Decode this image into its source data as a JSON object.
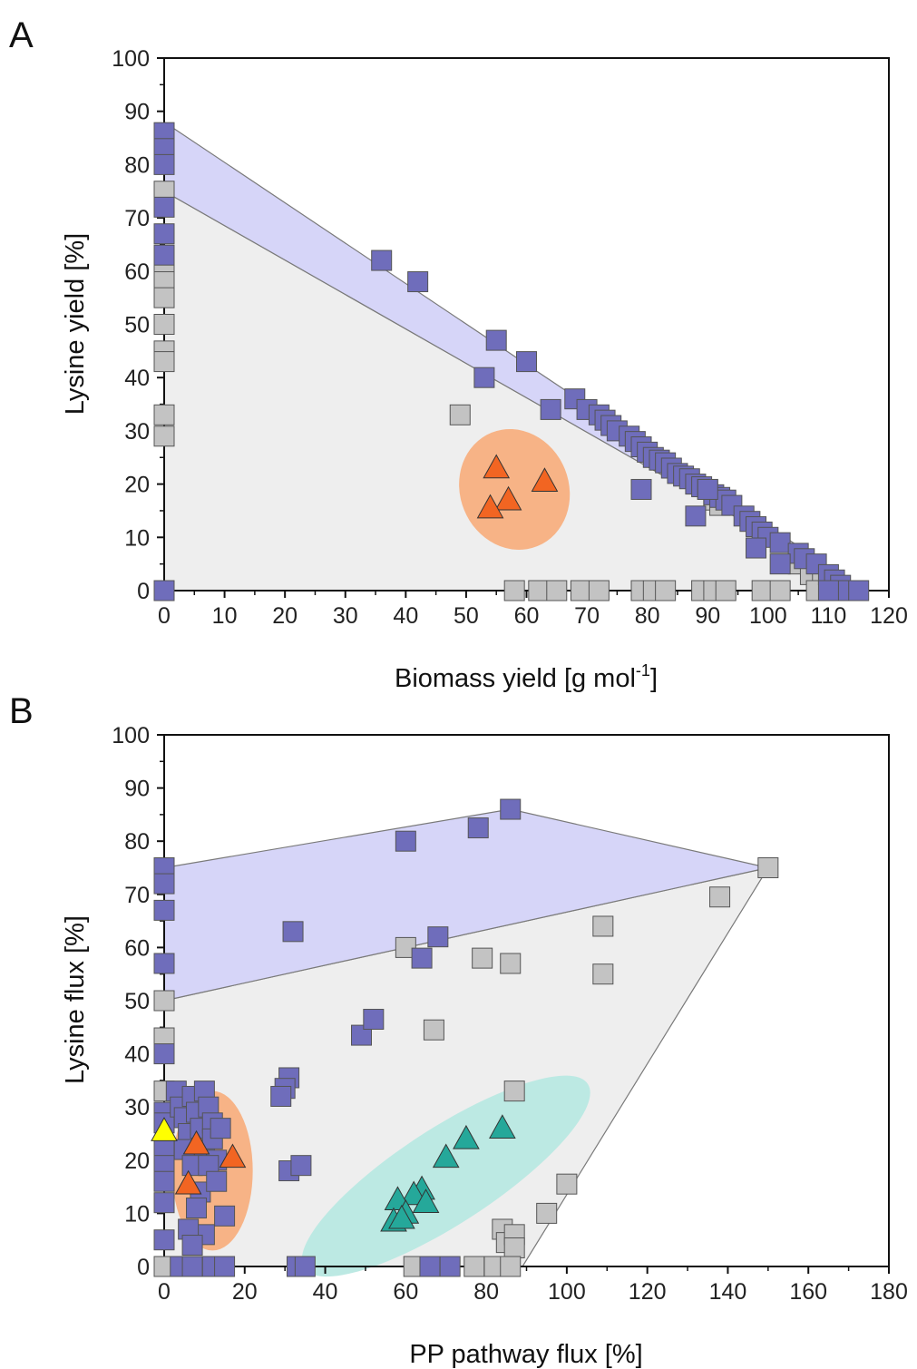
{
  "chart_data": [
    {
      "panel": "A",
      "type": "scatter",
      "xlabel": "Biomass yield [g  mol",
      "xlabel_sup": "-1",
      "xlabel_end": "]",
      "ylabel": "Lysine yield [%]",
      "xlim": [
        0,
        120
      ],
      "ylim": [
        0,
        100
      ],
      "xticks": [
        0,
        10,
        20,
        30,
        40,
        50,
        60,
        70,
        80,
        90,
        100,
        110,
        120
      ],
      "yticks": [
        0,
        10,
        20,
        30,
        40,
        50,
        60,
        70,
        80,
        90,
        100
      ],
      "regions": [
        {
          "color": "#eeeeee",
          "points": [
            [
              0,
              75
            ],
            [
              0,
              0
            ],
            [
              116,
              0
            ]
          ]
        },
        {
          "color": "#d6d5f8",
          "points": [
            [
              0,
              88
            ],
            [
              0,
              75
            ],
            [
              116,
              0
            ]
          ]
        }
      ],
      "ellipses": [
        {
          "color": "#f7b386",
          "cx": 58,
          "cy": 19,
          "rx": 9,
          "ry": 11.5,
          "rotate": -22
        }
      ],
      "series": [
        {
          "marker": "square",
          "color": "#c3c3c3",
          "points": [
            [
              0,
              75
            ],
            [
              0,
              60
            ],
            [
              0,
              58
            ],
            [
              0,
              55
            ],
            [
              0,
              50
            ],
            [
              0,
              45
            ],
            [
              0,
              43
            ],
            [
              0,
              33
            ],
            [
              0,
              29
            ],
            [
              49,
              33
            ],
            [
              91,
              17
            ],
            [
              92,
              16
            ],
            [
              105,
              5
            ],
            [
              107,
              3
            ],
            [
              109,
              2
            ],
            [
              58,
              0
            ],
            [
              62,
              0
            ],
            [
              65,
              0
            ],
            [
              69,
              0
            ],
            [
              72,
              0
            ],
            [
              79,
              0
            ],
            [
              81,
              0
            ],
            [
              83,
              0
            ],
            [
              89,
              0
            ],
            [
              91,
              0
            ],
            [
              93,
              0
            ],
            [
              99,
              0
            ],
            [
              102,
              0
            ],
            [
              108,
              0
            ]
          ]
        },
        {
          "marker": "square",
          "color": "#6f6dbb",
          "points": [
            [
              0,
              86
            ],
            [
              0,
              83
            ],
            [
              0,
              80
            ],
            [
              0,
              72
            ],
            [
              0,
              67
            ],
            [
              0,
              63
            ],
            [
              0,
              0
            ],
            [
              36,
              62
            ],
            [
              42,
              58
            ],
            [
              53,
              40
            ],
            [
              55,
              47
            ],
            [
              60,
              43
            ],
            [
              64,
              34
            ],
            [
              68,
              36
            ],
            [
              70,
              34
            ],
            [
              72,
              33
            ],
            [
              73,
              32
            ],
            [
              74,
              31
            ],
            [
              75,
              30
            ],
            [
              77,
              29
            ],
            [
              78,
              28
            ],
            [
              79,
              27
            ],
            [
              80,
              26
            ],
            [
              81,
              25
            ],
            [
              82,
              24.5
            ],
            [
              83,
              24
            ],
            [
              84,
              23
            ],
            [
              85,
              22
            ],
            [
              86,
              21.5
            ],
            [
              87,
              21
            ],
            [
              88,
              20
            ],
            [
              89,
              19.5
            ],
            [
              90,
              19
            ],
            [
              91,
              18
            ],
            [
              92,
              17.5
            ],
            [
              93,
              17
            ],
            [
              94,
              16
            ],
            [
              96,
              14
            ],
            [
              97,
              13
            ],
            [
              98,
              12
            ],
            [
              99,
              11
            ],
            [
              100,
              10
            ],
            [
              102,
              9
            ],
            [
              105,
              7
            ],
            [
              106,
              6
            ],
            [
              108,
              5
            ],
            [
              110,
              3
            ],
            [
              111,
              2
            ],
            [
              112,
              1
            ],
            [
              113,
              0
            ],
            [
              115,
              0
            ],
            [
              110,
              0
            ],
            [
              79,
              19
            ],
            [
              88,
              14
            ],
            [
              98,
              8
            ],
            [
              102,
              5
            ],
            [
              90,
              19
            ]
          ]
        },
        {
          "marker": "triangle",
          "color": "#f26522",
          "points": [
            [
              55,
              23
            ],
            [
              63,
              20.5
            ],
            [
              57,
              17
            ],
            [
              54,
              15.5
            ]
          ]
        }
      ]
    },
    {
      "panel": "B",
      "type": "scatter",
      "xlabel": "PP pathway flux [%]",
      "ylabel": "Lysine flux [%]",
      "xlim": [
        0,
        180
      ],
      "ylim": [
        0,
        100
      ],
      "xticks": [
        0,
        20,
        40,
        60,
        80,
        100,
        120,
        140,
        160,
        180
      ],
      "yticks": [
        0,
        10,
        20,
        30,
        40,
        50,
        60,
        70,
        80,
        90,
        100
      ],
      "regions": [
        {
          "color": "#eeeeee",
          "points": [
            [
              0,
              50
            ],
            [
              150,
              75
            ],
            [
              89,
              0
            ],
            [
              0,
              0
            ]
          ]
        },
        {
          "color": "#d6d5f8",
          "points": [
            [
              0,
              75
            ],
            [
              86,
              86
            ],
            [
              150,
              75
            ],
            [
              0,
              50
            ]
          ]
        }
      ],
      "ellipses": [
        {
          "color": "#f7b386",
          "cx": 12,
          "cy": 18,
          "rx": 10,
          "ry": 15,
          "rotate": 0
        },
        {
          "color": "#bce9e3",
          "cx": 70,
          "cy": 17,
          "rx": 42,
          "ry": 9,
          "rotate": -33
        }
      ],
      "series": [
        {
          "marker": "square",
          "color": "#c3c3c3",
          "points": [
            [
              0,
              50
            ],
            [
              0,
              43
            ],
            [
              0,
              33
            ],
            [
              0,
              0
            ],
            [
              60,
              60
            ],
            [
              67,
              44.5
            ],
            [
              79,
              58
            ],
            [
              86,
              57
            ],
            [
              109,
              64
            ],
            [
              109,
              55
            ],
            [
              138,
              69.5
            ],
            [
              150,
              75
            ],
            [
              87,
              33
            ],
            [
              100,
              15.5
            ],
            [
              95,
              10
            ],
            [
              84,
              7
            ],
            [
              85,
              4.5
            ],
            [
              87,
              6
            ],
            [
              87,
              3.5
            ],
            [
              62,
              0
            ],
            [
              77,
              0
            ],
            [
              82,
              0
            ],
            [
              86,
              0
            ]
          ]
        },
        {
          "marker": "square",
          "color": "#6f6dbb",
          "points": [
            [
              0,
              75
            ],
            [
              0,
              72
            ],
            [
              0,
              67
            ],
            [
              0,
              57
            ],
            [
              0,
              40
            ],
            [
              0,
              29
            ],
            [
              0,
              27
            ],
            [
              0,
              22
            ],
            [
              0,
              19
            ],
            [
              0,
              16
            ],
            [
              0,
              12
            ],
            [
              0,
              5
            ],
            [
              3,
              33
            ],
            [
              4,
              30
            ],
            [
              5,
              28
            ],
            [
              6,
              25
            ],
            [
              7,
              32
            ],
            [
              8,
              29
            ],
            [
              9,
              26
            ],
            [
              10,
              33
            ],
            [
              10,
              22
            ],
            [
              11,
              30
            ],
            [
              12,
              27
            ],
            [
              12,
              24
            ],
            [
              13,
              20
            ],
            [
              14,
              26
            ],
            [
              5,
              22
            ],
            [
              7,
              19
            ],
            [
              9,
              14
            ],
            [
              11,
              19
            ],
            [
              13,
              16
            ],
            [
              8,
              11
            ],
            [
              10,
              6
            ],
            [
              15,
              9.5
            ],
            [
              6,
              7
            ],
            [
              7,
              4
            ],
            [
              4,
              0
            ],
            [
              7,
              0
            ],
            [
              12,
              0
            ],
            [
              15,
              0
            ],
            [
              60,
              80
            ],
            [
              78,
              82.5
            ],
            [
              86,
              86
            ],
            [
              32,
              63
            ],
            [
              64,
              58
            ],
            [
              68,
              62
            ],
            [
              49,
              43.5
            ],
            [
              52,
              46.5
            ],
            [
              31,
              35.5
            ],
            [
              30,
              33.5
            ],
            [
              29,
              32
            ],
            [
              31,
              18
            ],
            [
              34,
              19
            ],
            [
              33,
              0
            ],
            [
              35,
              0
            ],
            [
              66,
              0
            ],
            [
              71,
              0
            ]
          ]
        },
        {
          "marker": "triangle",
          "color": "#f26522",
          "points": [
            [
              8,
              23
            ],
            [
              17,
              20.5
            ],
            [
              6,
              15.5
            ]
          ]
        },
        {
          "marker": "triangle",
          "color": "#ffff00",
          "points": [
            [
              0,
              25.5
            ]
          ]
        },
        {
          "marker": "triangle",
          "color": "#25a89a",
          "points": [
            [
              84,
              26
            ],
            [
              75,
              24
            ],
            [
              70,
              20.5
            ],
            [
              64,
              14.5
            ],
            [
              62,
              13.5
            ],
            [
              65,
              12
            ],
            [
              58,
              12.5
            ],
            [
              60,
              10
            ],
            [
              57,
              8.5
            ],
            [
              59,
              9
            ]
          ]
        }
      ]
    }
  ]
}
